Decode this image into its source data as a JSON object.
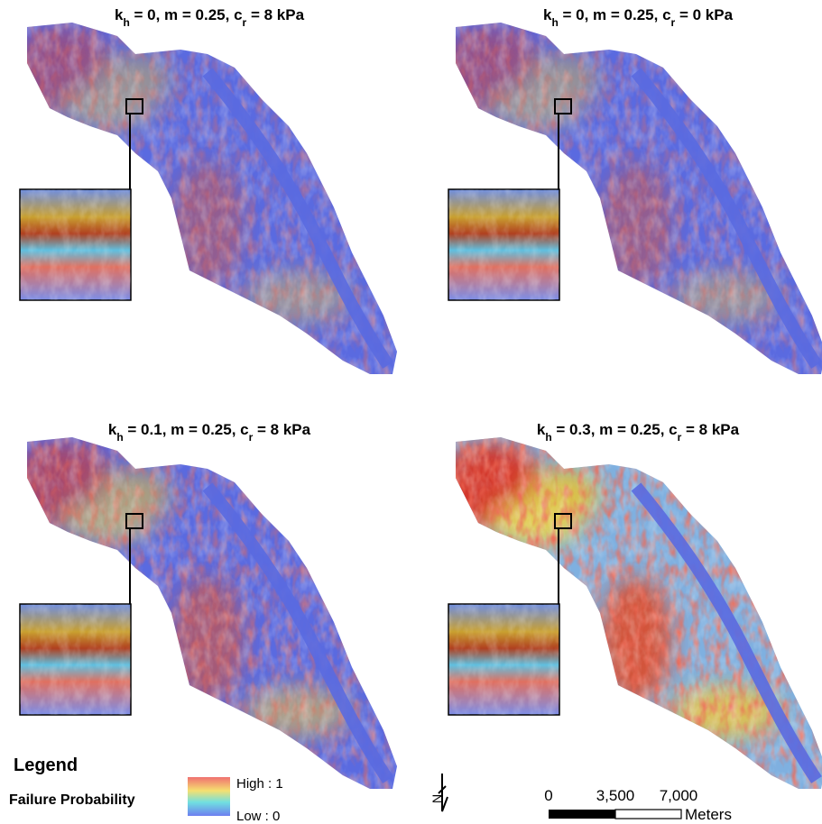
{
  "panels": [
    {
      "title": [
        "k",
        "h",
        " = 0, m = 0.25, c",
        "r",
        " = 8 kPa"
      ]
    },
    {
      "title": [
        "k",
        "h",
        " = 0, m = 0.25, c",
        "r",
        " = 0 kPa"
      ]
    },
    {
      "title": [
        "k",
        "h",
        " = 0.1, m = 0.25, c",
        "r",
        " = 8 kPa"
      ]
    },
    {
      "title": [
        "k",
        "h",
        " = 0.3, m = 0.25, c",
        "r",
        " = 8 kPa"
      ]
    }
  ],
  "legend": {
    "title": "Legend",
    "layer": "Failure Probability",
    "high": "High : 1",
    "low": "Low : 0"
  },
  "north_arrow": "N",
  "scale_bar": {
    "labels": [
      "0",
      "3,500",
      "7,000"
    ],
    "unit": "Meters"
  }
}
